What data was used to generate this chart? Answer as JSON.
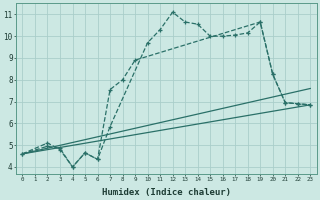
{
  "background_color": "#cce8e3",
  "grid_color": "#aaceca",
  "line_color": "#2a7068",
  "line1_x": [
    0,
    2,
    3,
    4,
    5,
    6,
    7,
    10,
    11,
    12,
    13,
    14,
    15,
    16,
    17,
    18,
    19,
    20,
    21,
    22,
    23
  ],
  "line1_y": [
    4.6,
    5.1,
    4.8,
    4.0,
    4.65,
    4.35,
    5.85,
    9.7,
    10.3,
    11.1,
    10.65,
    10.55,
    10.0,
    10.0,
    10.05,
    10.15,
    10.65,
    8.25,
    6.95,
    6.9,
    6.85
  ],
  "line2_x": [
    0,
    2,
    3,
    4,
    5,
    6,
    7,
    8,
    9,
    19,
    20,
    21,
    22,
    23
  ],
  "line2_y": [
    4.6,
    4.95,
    4.85,
    4.0,
    4.65,
    4.35,
    7.55,
    8.0,
    8.9,
    10.65,
    8.25,
    6.95,
    6.9,
    6.85
  ],
  "line3_x": [
    0,
    23
  ],
  "line3_y": [
    4.6,
    7.6
  ],
  "line4_x": [
    0,
    23
  ],
  "line4_y": [
    4.6,
    6.85
  ],
  "xlabel": "Humidex (Indice chaleur)",
  "xlim": [
    -0.5,
    23.5
  ],
  "ylim": [
    3.7,
    11.5
  ],
  "yticks": [
    4,
    5,
    6,
    7,
    8,
    9,
    10,
    11
  ],
  "xticks": [
    0,
    1,
    2,
    3,
    4,
    5,
    6,
    7,
    8,
    9,
    10,
    11,
    12,
    13,
    14,
    15,
    16,
    17,
    18,
    19,
    20,
    21,
    22,
    23
  ]
}
